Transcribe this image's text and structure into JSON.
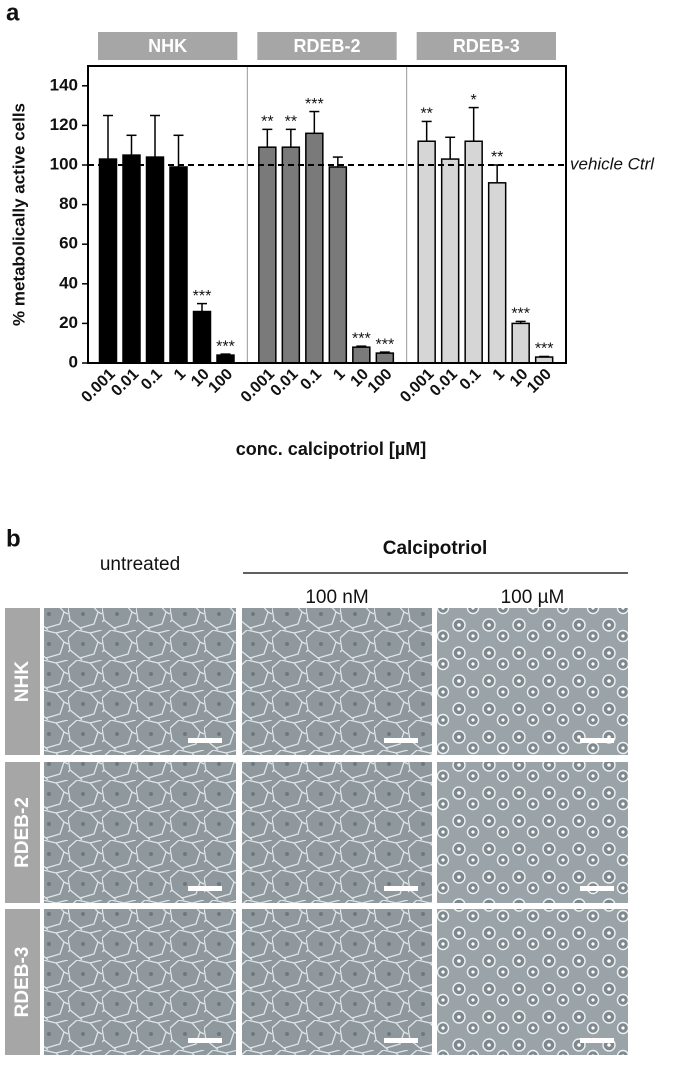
{
  "panel_a": {
    "label": "a"
  },
  "chart_data": {
    "type": "bar",
    "y_label": "% metabolically active cells",
    "x_label": "conc. calcipotriol [µM]",
    "categories": [
      "0.001",
      "0.01",
      "0.1",
      "1",
      "10",
      "100"
    ],
    "ylim": [
      0,
      150
    ],
    "yticks": [
      0,
      20,
      40,
      60,
      80,
      100,
      120,
      140
    ],
    "reference_line": {
      "value": 100,
      "label": "vehicle Ctrl"
    },
    "series": [
      {
        "name": "NHK",
        "color": "#000000",
        "values": [
          103,
          105,
          104,
          99,
          26,
          4
        ],
        "errors": [
          22,
          10,
          21,
          16,
          4,
          0.5
        ],
        "significance": [
          null,
          null,
          null,
          null,
          "***",
          "***"
        ]
      },
      {
        "name": "RDEB-2",
        "color": "#7a7a7a",
        "values": [
          109,
          109,
          116,
          99,
          8,
          5
        ],
        "errors": [
          9,
          9,
          11,
          5,
          0.5,
          0.5
        ],
        "significance": [
          "**",
          "**",
          "***",
          null,
          "***",
          "***"
        ]
      },
      {
        "name": "RDEB-3",
        "color": "#d6d6d6",
        "values": [
          112,
          103,
          112,
          91,
          20,
          3
        ],
        "errors": [
          10,
          11,
          17,
          9,
          1,
          0.3
        ],
        "significance": [
          "**",
          null,
          "*",
          "**",
          "***",
          "***"
        ]
      }
    ]
  },
  "panel_b": {
    "label": "b",
    "group_header": "Calcipotriol",
    "columns": [
      "untreated",
      "100 nM",
      "100 µM"
    ],
    "rows": [
      "NHK",
      "RDEB-2",
      "RDEB-3"
    ]
  }
}
